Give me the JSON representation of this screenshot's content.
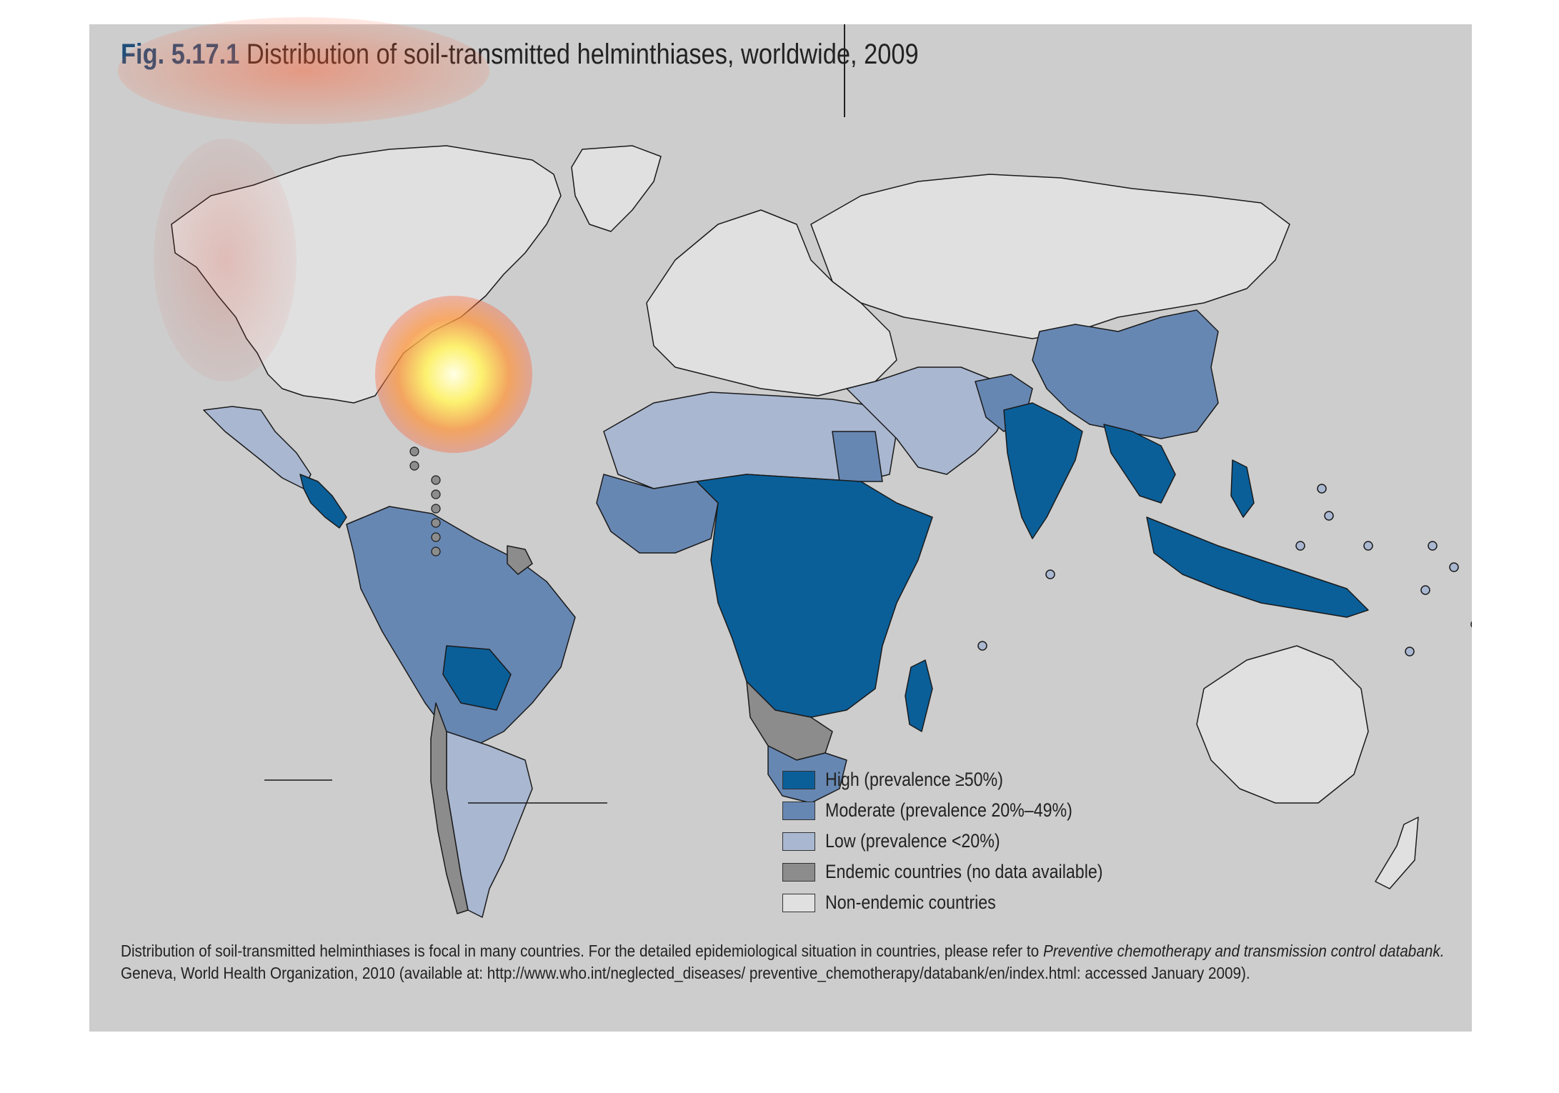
{
  "title": {
    "fig_label": "Fig. 5.17.1",
    "text": "Distribution of soil-transmitted helminthiases, worldwide, 2009"
  },
  "legend": {
    "items": [
      {
        "label": "High (prevalence ≥50%)",
        "color": "#0a5f99"
      },
      {
        "label": "Moderate (prevalence 20%–49%)",
        "color": "#6787b3"
      },
      {
        "label": "Low (prevalence <20%)",
        "color": "#a9b7d1"
      },
      {
        "label": "Endemic countries (no data available)",
        "color": "#8c8c8c"
      },
      {
        "label": "Non-endemic countries",
        "color": "#e0e0e0"
      }
    ]
  },
  "footnote": {
    "line1_prefix": "Distribution of soil-transmitted helminthiases is focal in many countries. For the detailed epidemiological situation in countries, please refer to ",
    "line1_italic": "Preventive chemotherapy and transmission control databank.",
    "line2": "Geneva, World Health Organization, 2010 (available at: http://www.who.int/neglected_diseases/ preventive_chemotherapy/databank/en/index.html: accessed January 2009)."
  },
  "colors": {
    "panel_bg": "#cdcdcd",
    "title_accent": "#1f4e79",
    "heatmap_hot": "#fff36b",
    "heatmap_warm": "#ff5a2a"
  }
}
